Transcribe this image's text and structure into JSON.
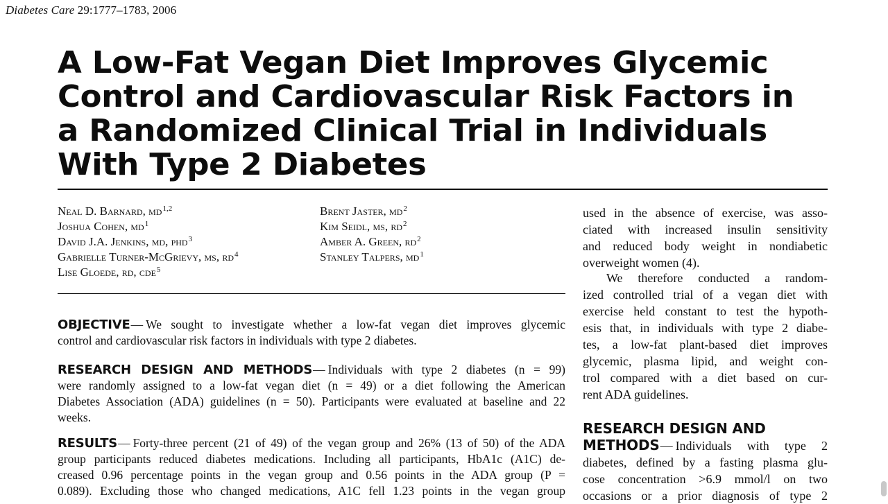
{
  "journal": {
    "name": "Diabetes Care",
    "volume": "29:1777–1783, 2006"
  },
  "title_lines": [
    "A Low-Fat Vegan Diet Improves Glycemic",
    "Control and Cardiovascular Risk Factors in",
    "a Randomized Clinical Trial in Individuals",
    "With Type 2 Diabetes"
  ],
  "authors_left": [
    {
      "name": "Neal D. Barnard, md",
      "sup": "1,2"
    },
    {
      "name": "Joshua Cohen, md",
      "sup": "1"
    },
    {
      "name": "David J.A. Jenkins, md, phd",
      "sup": "3"
    },
    {
      "name": "Gabrielle Turner-McGrievy, ms, rd",
      "sup": "4"
    },
    {
      "name": "Lise Gloede, rd, cde",
      "sup": "5"
    }
  ],
  "authors_right": [
    {
      "name": "Brent Jaster, md",
      "sup": "2"
    },
    {
      "name": "Kim Seidl, ms, rd",
      "sup": "2"
    },
    {
      "name": "Amber A. Green, rd",
      "sup": "2"
    },
    {
      "name": "Stanley Talpers, md",
      "sup": "1"
    }
  ],
  "abstract": {
    "objective_head": "OBJECTIVE",
    "objective_lines": [
      "We sought to investigate whether a low-fat vegan diet improves glycemic",
      "control and cardiovascular risk factors in individuals with type 2 diabetes."
    ],
    "methods_head": "RESEARCH DESIGN AND METHODS",
    "methods_lines": [
      "Individuals with type 2 diabetes (n = 99)",
      "were randomly assigned to a low-fat vegan diet (n = 49) or a diet following the American",
      "Diabetes Association (ADA) guidelines (n = 50). Participants were evaluated at baseline and 22",
      "weeks."
    ],
    "results_head": "RESULTS",
    "results_lines": [
      "Forty-three percent (21 of 49) of the vegan group and 26% (13 of 50) of the ADA",
      "group participants reduced diabetes medications. Including all participants, HbA1c (A1C) de-",
      "creased 0.96 percentage points in the vegan group and 0.56 points in the ADA group (P =",
      "0.089). Excluding those who changed medications, A1C fell 1.23 points in the vegan group"
    ]
  },
  "right_column": {
    "para1": [
      "used in the absence of exercise, was asso-",
      "ciated with increased insulin sensitivity",
      "and reduced body weight in nondiabetic",
      "overweight women (4)."
    ],
    "para2": [
      "We therefore conducted a random-",
      "ized controlled trial of a vegan diet with",
      "exercise held constant to test the hypoth-",
      "esis that, in individuals with type 2 diabe-",
      "tes, a low-fat plant-based diet improves",
      "glycemic, plasma lipid, and weight con-",
      "trol compared with a diet based on cur-",
      "rent ADA guidelines."
    ],
    "section_head_1": "RESEARCH DESIGN AND",
    "section_head_2": "METHODS",
    "section_lines": [
      "Individuals with type 2",
      "diabetes, defined by a fasting plasma glu-",
      "cose concentration >6.9 mmol/l on two",
      "occasions or a prior diagnosis of type 2"
    ]
  }
}
